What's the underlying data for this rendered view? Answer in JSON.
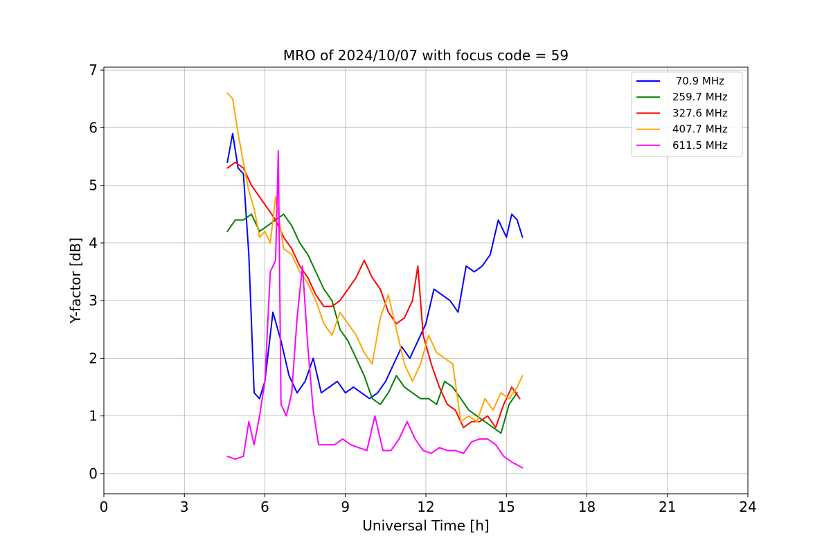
{
  "chart_data": {
    "type": "line",
    "title": "MRO of 2024/10/07 with focus code = 59",
    "xlabel": "Universal Time [h]",
    "ylabel": "Y-factor [dB]",
    "xlim": [
      0,
      24
    ],
    "ylim": [
      -0.35,
      7.05
    ],
    "xticks": [
      0,
      3,
      6,
      9,
      12,
      15,
      18,
      21,
      24
    ],
    "yticks": [
      0,
      1,
      2,
      3,
      4,
      5,
      6,
      7
    ],
    "grid": true,
    "legend_position": "top-right",
    "series": [
      {
        "name": " 70.9 MHz",
        "color": "#0000ff",
        "x": [
          4.6,
          4.8,
          5.0,
          5.2,
          5.4,
          5.6,
          5.8,
          6.0,
          6.3,
          6.6,
          6.9,
          7.2,
          7.5,
          7.8,
          8.1,
          8.4,
          8.7,
          9.0,
          9.3,
          9.6,
          9.9,
          10.2,
          10.5,
          10.8,
          11.1,
          11.4,
          11.7,
          12.0,
          12.3,
          12.6,
          12.9,
          13.2,
          13.5,
          13.8,
          14.1,
          14.4,
          14.7,
          15.0,
          15.2,
          15.4,
          15.6
        ],
        "y": [
          5.4,
          5.9,
          5.3,
          5.2,
          3.8,
          1.4,
          1.3,
          1.6,
          2.8,
          2.3,
          1.7,
          1.4,
          1.6,
          2.0,
          1.4,
          1.5,
          1.6,
          1.4,
          1.5,
          1.4,
          1.3,
          1.4,
          1.6,
          1.9,
          2.2,
          2.0,
          2.3,
          2.6,
          3.2,
          3.1,
          3.0,
          2.8,
          3.6,
          3.5,
          3.6,
          3.8,
          4.4,
          4.1,
          4.5,
          4.4,
          4.1
        ]
      },
      {
        "name": "259.7 MHz",
        "color": "#008000",
        "x": [
          4.6,
          4.9,
          5.2,
          5.5,
          5.8,
          6.1,
          6.4,
          6.7,
          7.0,
          7.3,
          7.6,
          7.9,
          8.2,
          8.5,
          8.8,
          9.1,
          9.4,
          9.7,
          10.0,
          10.3,
          10.6,
          10.9,
          11.2,
          11.5,
          11.8,
          12.1,
          12.4,
          12.7,
          13.0,
          13.3,
          13.6,
          13.9,
          14.2,
          14.5,
          14.8,
          15.1,
          15.4
        ],
        "y": [
          4.2,
          4.4,
          4.4,
          4.5,
          4.2,
          4.3,
          4.4,
          4.5,
          4.3,
          4.0,
          3.8,
          3.5,
          3.2,
          3.0,
          2.5,
          2.3,
          2.0,
          1.7,
          1.3,
          1.2,
          1.4,
          1.7,
          1.5,
          1.4,
          1.3,
          1.3,
          1.2,
          1.6,
          1.5,
          1.3,
          1.1,
          1.0,
          0.9,
          0.8,
          0.7,
          1.2,
          1.4
        ]
      },
      {
        "name": "327.6 MHz",
        "color": "#ff0000",
        "x": [
          4.6,
          4.9,
          5.2,
          5.5,
          5.8,
          6.1,
          6.4,
          6.7,
          7.0,
          7.3,
          7.6,
          7.9,
          8.2,
          8.5,
          8.8,
          9.1,
          9.4,
          9.7,
          10.0,
          10.3,
          10.6,
          10.9,
          11.2,
          11.5,
          11.7,
          11.9,
          12.2,
          12.5,
          12.8,
          13.1,
          13.4,
          13.7,
          14.0,
          14.3,
          14.6,
          14.9,
          15.2,
          15.5
        ],
        "y": [
          5.3,
          5.4,
          5.3,
          5.0,
          4.8,
          4.6,
          4.4,
          4.1,
          3.9,
          3.6,
          3.4,
          3.1,
          2.9,
          2.9,
          3.0,
          3.2,
          3.4,
          3.7,
          3.4,
          3.2,
          2.8,
          2.6,
          2.7,
          3.0,
          3.6,
          2.4,
          1.9,
          1.5,
          1.2,
          1.1,
          0.8,
          0.9,
          0.9,
          1.0,
          0.8,
          1.2,
          1.5,
          1.3
        ]
      },
      {
        "name": "407.7 MHz",
        "color": "#ffa500",
        "x": [
          4.6,
          4.8,
          5.0,
          5.2,
          5.4,
          5.6,
          5.8,
          6.0,
          6.2,
          6.4,
          6.7,
          7.0,
          7.3,
          7.6,
          7.9,
          8.2,
          8.5,
          8.8,
          9.1,
          9.4,
          9.7,
          10.0,
          10.3,
          10.6,
          10.9,
          11.2,
          11.5,
          11.8,
          12.1,
          12.4,
          12.7,
          13.0,
          13.3,
          13.6,
          13.9,
          14.2,
          14.5,
          14.8,
          15.1,
          15.4,
          15.6
        ],
        "y": [
          6.6,
          6.5,
          5.9,
          5.4,
          4.9,
          4.6,
          4.1,
          4.2,
          4.0,
          4.8,
          3.9,
          3.8,
          3.5,
          3.3,
          3.0,
          2.6,
          2.4,
          2.8,
          2.6,
          2.4,
          2.1,
          1.9,
          2.7,
          3.1,
          2.5,
          1.9,
          1.6,
          1.9,
          2.4,
          2.1,
          2.0,
          1.9,
          0.9,
          1.0,
          0.9,
          1.3,
          1.1,
          1.4,
          1.3,
          1.5,
          1.7
        ]
      },
      {
        "name": "611.5 MHz",
        "color": "#ff00ff",
        "x": [
          4.6,
          4.9,
          5.2,
          5.4,
          5.6,
          5.8,
          6.0,
          6.2,
          6.4,
          6.5,
          6.6,
          6.8,
          7.0,
          7.2,
          7.4,
          7.6,
          7.8,
          8.0,
          8.3,
          8.6,
          8.9,
          9.2,
          9.5,
          9.8,
          10.1,
          10.4,
          10.7,
          11.0,
          11.3,
          11.6,
          11.9,
          12.2,
          12.5,
          12.8,
          13.1,
          13.4,
          13.7,
          14.0,
          14.3,
          14.6,
          14.9,
          15.2,
          15.6
        ],
        "y": [
          0.3,
          0.25,
          0.3,
          0.9,
          0.5,
          1.0,
          1.6,
          3.5,
          3.7,
          5.6,
          1.2,
          1.0,
          1.4,
          2.7,
          3.6,
          2.2,
          1.1,
          0.5,
          0.5,
          0.5,
          0.6,
          0.5,
          0.45,
          0.4,
          1.0,
          0.4,
          0.4,
          0.6,
          0.9,
          0.6,
          0.4,
          0.35,
          0.45,
          0.4,
          0.4,
          0.35,
          0.55,
          0.6,
          0.6,
          0.5,
          0.3,
          0.2,
          0.1
        ]
      }
    ]
  }
}
